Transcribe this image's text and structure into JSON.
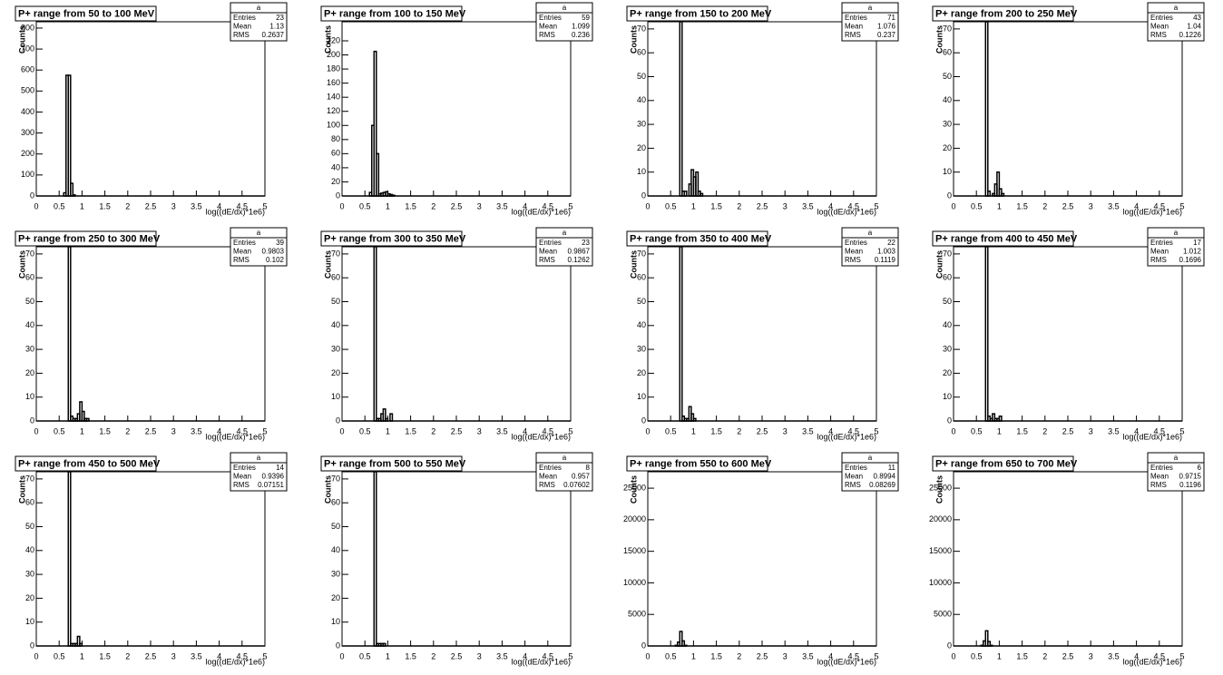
{
  "chart_data": [
    {
      "type": "histogram",
      "title": "P+ range from 50 to 100 MeV",
      "xlabel": "log((dE/dx)*1e6)",
      "ylabel": "Counts",
      "stats": {
        "name": "a",
        "labels": [
          "Entries",
          "Mean",
          "RMS"
        ],
        "values": [
          23,
          1.13,
          0.2637
        ]
      },
      "bins": [
        0.6,
        0.65,
        0.7,
        0.75,
        0.8,
        0.85
      ],
      "counts": [
        15,
        575,
        575,
        60,
        5
      ],
      "xlim": [
        0,
        5
      ],
      "ylim": [
        0,
        830
      ],
      "xticks": [
        0,
        0.5,
        1,
        1.5,
        2,
        2.5,
        3,
        3.5,
        4,
        4.5,
        5
      ],
      "yticks": [
        0,
        100,
        200,
        300,
        400,
        500,
        600,
        700,
        800
      ]
    },
    {
      "type": "histogram",
      "title": "P+ range from 100 to 150 MeV",
      "xlabel": "log((dE/dx)*1e6)",
      "ylabel": "Counts",
      "stats": {
        "name": "a",
        "labels": [
          "Entries",
          "Mean",
          "RMS"
        ],
        "values": [
          59,
          1.099,
          0.236
        ]
      },
      "bins": [
        0.6,
        0.65,
        0.7,
        0.75,
        0.8,
        0.85,
        0.9,
        0.95,
        1.0,
        1.05,
        1.1,
        1.15
      ],
      "counts": [
        5,
        100,
        205,
        60,
        3,
        4,
        5,
        6,
        3,
        2,
        1
      ],
      "xlim": [
        0,
        5
      ],
      "ylim": [
        0,
        247
      ],
      "xticks": [
        0,
        0.5,
        1,
        1.5,
        2,
        2.5,
        3,
        3.5,
        4,
        4.5,
        5
      ],
      "yticks": [
        0,
        20,
        40,
        60,
        80,
        100,
        120,
        140,
        160,
        180,
        200,
        220
      ]
    },
    {
      "type": "histogram",
      "title": "P+ range from 150 to 200 MeV",
      "xlabel": "log((dE/dx)*1e6)",
      "ylabel": "Counts",
      "stats": {
        "name": "a",
        "labels": [
          "Entries",
          "Mean",
          "RMS"
        ],
        "values": [
          71,
          1.076,
          0.237
        ]
      },
      "bins": [
        0.7,
        0.75,
        0.8,
        0.85,
        0.9,
        0.95,
        1.0,
        1.05,
        1.1,
        1.15,
        1.2
      ],
      "counts": [
        73,
        2,
        2,
        0,
        5,
        11,
        8,
        10,
        2,
        1
      ],
      "xlim": [
        0,
        5
      ],
      "ylim": [
        0,
        73
      ],
      "xticks": [
        0,
        0.5,
        1,
        1.5,
        2,
        2.5,
        3,
        3.5,
        4,
        4.5,
        5
      ],
      "yticks": [
        0,
        10,
        20,
        30,
        40,
        50,
        60,
        70
      ]
    },
    {
      "type": "histogram",
      "title": "P+ range from 200 to 250 MeV",
      "xlabel": "log((dE/dx)*1e6)",
      "ylabel": "Counts",
      "stats": {
        "name": "a",
        "labels": [
          "Entries",
          "Mean",
          "RMS"
        ],
        "values": [
          43,
          1.04,
          0.1226
        ]
      },
      "bins": [
        0.7,
        0.75,
        0.8,
        0.85,
        0.9,
        0.95,
        1.0,
        1.05,
        1.1,
        1.15
      ],
      "counts": [
        73,
        2,
        0,
        1,
        5,
        10,
        3,
        1,
        0
      ],
      "xlim": [
        0,
        5
      ],
      "ylim": [
        0,
        73
      ],
      "xticks": [
        0,
        0.5,
        1,
        1.5,
        2,
        2.5,
        3,
        3.5,
        4,
        4.5,
        5
      ],
      "yticks": [
        0,
        10,
        20,
        30,
        40,
        50,
        60,
        70
      ]
    },
    {
      "type": "histogram",
      "title": "P+ range from 250 to 300 MeV",
      "xlabel": "log((dE/dx)*1e6)",
      "ylabel": "Counts",
      "stats": {
        "name": "a",
        "labels": [
          "Entries",
          "Mean",
          "RMS"
        ],
        "values": [
          39,
          0.9803,
          0.102
        ]
      },
      "bins": [
        0.7,
        0.75,
        0.8,
        0.85,
        0.9,
        0.95,
        1.0,
        1.05,
        1.1,
        1.15,
        1.2
      ],
      "counts": [
        73,
        2,
        1,
        1,
        3,
        8,
        4,
        1,
        1,
        0
      ],
      "xlim": [
        0,
        5
      ],
      "ylim": [
        0,
        73
      ],
      "xticks": [
        0,
        0.5,
        1,
        1.5,
        2,
        2.5,
        3,
        3.5,
        4,
        4.5,
        5
      ],
      "yticks": [
        0,
        10,
        20,
        30,
        40,
        50,
        60,
        70
      ]
    },
    {
      "type": "histogram",
      "title": "P+ range from 300 to 350 MeV",
      "xlabel": "log((dE/dx)*1e6)",
      "ylabel": "Counts",
      "stats": {
        "name": "a",
        "labels": [
          "Entries",
          "Mean",
          "RMS"
        ],
        "values": [
          23,
          0.9867,
          0.1262
        ]
      },
      "bins": [
        0.7,
        0.75,
        0.8,
        0.85,
        0.9,
        0.95,
        1.0,
        1.05,
        1.1,
        1.15,
        1.2
      ],
      "counts": [
        73,
        1,
        1,
        3,
        5,
        1,
        0,
        3,
        0,
        0
      ],
      "xlim": [
        0,
        5
      ],
      "ylim": [
        0,
        73
      ],
      "xticks": [
        0,
        0.5,
        1,
        1.5,
        2,
        2.5,
        3,
        3.5,
        4,
        4.5,
        5
      ],
      "yticks": [
        0,
        10,
        20,
        30,
        40,
        50,
        60,
        70
      ]
    },
    {
      "type": "histogram",
      "title": "P+ range from 350 to 400 MeV",
      "xlabel": "log((dE/dx)*1e6)",
      "ylabel": "Counts",
      "stats": {
        "name": "a",
        "labels": [
          "Entries",
          "Mean",
          "RMS"
        ],
        "values": [
          22,
          1.003,
          0.1119
        ]
      },
      "bins": [
        0.7,
        0.75,
        0.8,
        0.85,
        0.9,
        0.95,
        1.0,
        1.05,
        1.1,
        1.15,
        1.2
      ],
      "counts": [
        73,
        2,
        1,
        1,
        6,
        3,
        1,
        0,
        0,
        0
      ],
      "xlim": [
        0,
        5
      ],
      "ylim": [
        0,
        73
      ],
      "xticks": [
        0,
        0.5,
        1,
        1.5,
        2,
        2.5,
        3,
        3.5,
        4,
        4.5,
        5
      ],
      "yticks": [
        0,
        10,
        20,
        30,
        40,
        50,
        60,
        70
      ]
    },
    {
      "type": "histogram",
      "title": "P+ range from 400 to 450 MeV",
      "xlabel": "log((dE/dx)*1e6)",
      "ylabel": "Counts",
      "stats": {
        "name": "a",
        "labels": [
          "Entries",
          "Mean",
          "RMS"
        ],
        "values": [
          17,
          1.012,
          0.1696
        ]
      },
      "bins": [
        0.7,
        0.75,
        0.8,
        0.85,
        0.9,
        0.95,
        1.0,
        1.05,
        1.1,
        1.15,
        1.2
      ],
      "counts": [
        73,
        2,
        1,
        3,
        1,
        1,
        2,
        0,
        0,
        0
      ],
      "xlim": [
        0,
        5
      ],
      "ylim": [
        0,
        73
      ],
      "xticks": [
        0,
        0.5,
        1,
        1.5,
        2,
        2.5,
        3,
        3.5,
        4,
        4.5,
        5
      ],
      "yticks": [
        0,
        10,
        20,
        30,
        40,
        50,
        60,
        70
      ]
    },
    {
      "type": "histogram",
      "title": "P+ range from 450 to 500 MeV",
      "xlabel": "log((dE/dx)*1e6)",
      "ylabel": "Counts",
      "stats": {
        "name": "a",
        "labels": [
          "Entries",
          "Mean",
          "RMS"
        ],
        "values": [
          14,
          0.9396,
          0.07151
        ]
      },
      "bins": [
        0.7,
        0.75,
        0.8,
        0.85,
        0.9,
        0.95,
        1.0,
        1.05,
        1.1,
        1.15,
        1.2
      ],
      "counts": [
        73,
        1,
        1,
        1,
        4,
        1,
        0,
        0,
        0,
        0
      ],
      "xlim": [
        0,
        5
      ],
      "ylim": [
        0,
        73
      ],
      "xticks": [
        0,
        0.5,
        1,
        1.5,
        2,
        2.5,
        3,
        3.5,
        4,
        4.5,
        5
      ],
      "yticks": [
        0,
        10,
        20,
        30,
        40,
        50,
        60,
        70
      ]
    },
    {
      "type": "histogram",
      "title": "P+ range from 500 to 550 MeV",
      "xlabel": "log((dE/dx)*1e6)",
      "ylabel": "Counts",
      "stats": {
        "name": "a",
        "labels": [
          "Entries",
          "Mean",
          "RMS"
        ],
        "values": [
          8,
          0.957,
          0.07602
        ]
      },
      "bins": [
        0.7,
        0.75,
        0.8,
        0.85,
        0.9,
        0.95,
        1.0,
        1.05,
        1.1,
        1.15,
        1.2
      ],
      "counts": [
        73,
        1,
        1,
        1,
        1,
        0,
        0,
        0,
        0,
        0
      ],
      "xlim": [
        0,
        5
      ],
      "ylim": [
        0,
        73
      ],
      "xticks": [
        0,
        0.5,
        1,
        1.5,
        2,
        2.5,
        3,
        3.5,
        4,
        4.5,
        5
      ],
      "yticks": [
        0,
        10,
        20,
        30,
        40,
        50,
        60,
        70
      ]
    },
    {
      "type": "histogram",
      "title": "P+ range from 550 to 600 MeV",
      "xlabel": "log((dE/dx)*1e6)",
      "ylabel": "Counts",
      "stats": {
        "name": "a",
        "labels": [
          "Entries",
          "Mean",
          "RMS"
        ],
        "values": [
          11,
          0.8994,
          0.08269
        ]
      },
      "bins": [
        0.6,
        0.65,
        0.7,
        0.75,
        0.8,
        0.85,
        0.9
      ],
      "counts": [
        100,
        600,
        2300,
        800,
        100,
        0
      ],
      "xlim": [
        0,
        5
      ],
      "ylim": [
        0,
        27600
      ],
      "xticks": [
        0,
        0.5,
        1,
        1.5,
        2,
        2.5,
        3,
        3.5,
        4,
        4.5,
        5
      ],
      "yticks": [
        0,
        5000,
        10000,
        15000,
        20000,
        25000
      ]
    },
    {
      "type": "histogram",
      "title": "P+ range from 650 to 700 MeV",
      "xlabel": "log((dE/dx)*1e6)",
      "ylabel": "Counts",
      "stats": {
        "name": "a",
        "labels": [
          "Entries",
          "Mean",
          "RMS"
        ],
        "values": [
          6,
          0.9715,
          0.1196
        ]
      },
      "bins": [
        0.6,
        0.65,
        0.7,
        0.75,
        0.8,
        0.85,
        0.9
      ],
      "counts": [
        100,
        800,
        2400,
        700,
        100,
        0
      ],
      "xlim": [
        0,
        5
      ],
      "ylim": [
        0,
        27600
      ],
      "xticks": [
        0,
        0.5,
        1,
        1.5,
        2,
        2.5,
        3,
        3.5,
        4,
        4.5,
        5
      ],
      "yticks": [
        0,
        5000,
        10000,
        15000,
        20000,
        25000
      ]
    }
  ]
}
